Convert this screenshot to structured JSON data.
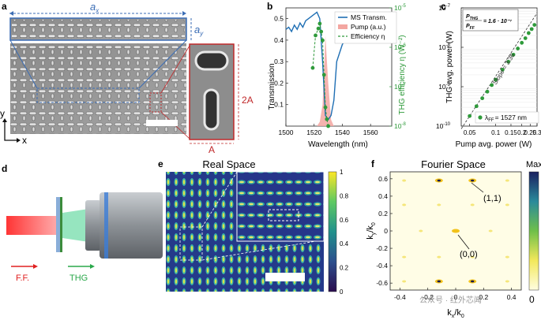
{
  "panels": {
    "a": {
      "letter": "a",
      "ax_label": "a",
      "ax_sub": "x",
      "ay_label": "a",
      "ay_sub": "y",
      "scale_label_2a": "2A",
      "scale_label_a": "A",
      "axis_y": "y",
      "axis_x": "x"
    },
    "b": {
      "letter": "b",
      "legend": [
        "MS Transm.",
        "Pump (a.u.)",
        "Efficiency η"
      ],
      "ylabel_left": "Transmission",
      "ylabel_right": "THG efficiency η (W⁻²)",
      "xlabel": "Wavelength (nm)",
      "xticks": [
        "1500",
        "1520",
        "1540",
        "1560"
      ],
      "yticks_left": [
        "0.1",
        "0.2",
        "0.3",
        "0.4",
        "0.5"
      ],
      "yticks_right": [
        "10",
        "10",
        "10",
        "10"
      ],
      "yticks_right_exp": [
        "-8",
        "-7",
        "-6",
        "-5"
      ]
    },
    "c": {
      "letter": "c",
      "formula_ratio": "P_THG / P_FF",
      "formula_num": "P",
      "formula_num_sub": "THG",
      "formula_den": "P",
      "formula_den_sub": "FF",
      "formula_value": "= 1.6 · 10⁻⁷",
      "slope_text": "Slope = 3.36",
      "legend_symbol": "λ",
      "legend_sub": "FF",
      "legend_value": "= 1527 nm",
      "ylabel": "THG avg. power (W)",
      "xlabel": "Pump avg. power (W)",
      "xticks": [
        "0.05",
        "0.1",
        "0.15",
        "0.2",
        "0.25",
        "0.3"
      ],
      "yticks": [
        "10",
        "10",
        "10",
        "10"
      ],
      "yticks_exp": [
        "-10",
        "-9",
        "-8",
        "-7"
      ]
    },
    "d": {
      "letter": "d",
      "ff_label": "F.F.",
      "thg_label": "THG"
    },
    "e": {
      "letter": "e",
      "title": "Real Space",
      "colorbar_ticks": [
        "1",
        "0.8",
        "0.6",
        "0.4",
        "0.2",
        "0"
      ]
    },
    "f": {
      "letter": "f",
      "title": "Fourier Space",
      "cbar_max": "Max",
      "cbar_min": "0",
      "ylabel": "k",
      "ylabel_sub": "y",
      "ylabel_over": "/k",
      "ylabel_over_sub": "0",
      "xlabel": "k",
      "xlabel_sub": "x",
      "xlabel_over": "/k",
      "xlabel_over_sub": "0",
      "yticks": [
        "0.6",
        "0.4",
        "0.2",
        "0",
        "-0.2",
        "-0.4",
        "-0.6"
      ],
      "xticks": [
        "-0.4",
        "-0.2",
        "0",
        "0.2",
        "0.4"
      ],
      "annotation_11": "(1,1)",
      "annotation_00": "(0,0)",
      "watermark": "公众号 · 红外芯闻"
    }
  },
  "chart_data": [
    {
      "type": "line",
      "panel": "b",
      "xlabel": "Wavelength (nm)",
      "ylabel": "Transmission",
      "xlim": [
        1500,
        1575
      ],
      "ylim": [
        0.0,
        0.55
      ],
      "series": [
        {
          "name": "MS Transm.",
          "color": "#1f6fb4",
          "x": [
            1500,
            1502,
            1504,
            1506,
            1508,
            1510,
            1512,
            1514,
            1516,
            1518,
            1520,
            1522,
            1524,
            1526,
            1528,
            1530,
            1532,
            1534,
            1536,
            1540,
            1544,
            1548,
            1552,
            1556,
            1560,
            1564,
            1568,
            1572,
            1575
          ],
          "y": [
            0.45,
            0.46,
            0.44,
            0.47,
            0.45,
            0.48,
            0.46,
            0.49,
            0.5,
            0.51,
            0.52,
            0.53,
            0.5,
            0.3,
            0.05,
            0.03,
            0.05,
            0.12,
            0.3,
            0.38,
            0.42,
            0.4,
            0.43,
            0.44,
            0.42,
            0.45,
            0.43,
            0.46,
            0.45
          ]
        },
        {
          "name": "Pump (a.u.)",
          "color": "#f3a6a1",
          "x": [
            1520,
            1522,
            1524,
            1526,
            1528,
            1530,
            1532,
            1534
          ],
          "y": [
            0.0,
            0.0,
            0.02,
            0.1,
            0.42,
            0.2,
            0.03,
            0.0
          ]
        }
      ]
    },
    {
      "type": "scatter",
      "panel": "b",
      "series": [
        {
          "name": "Efficiency η",
          "color": "#2e9a3a",
          "x": [
            1519,
            1521,
            1523,
            1524,
            1525,
            1526,
            1527,
            1528,
            1529,
            1530
          ],
          "y": [
            3e-07,
            2e-06,
            3e-06,
            4e-06,
            2.5e-06,
            1.5e-06,
            2e-07,
            3e-08,
            1.5e-08,
            1e-08
          ]
        }
      ],
      "ylabel": "THG efficiency η (W⁻²)",
      "ylim": [
        1e-08,
        1e-05
      ],
      "yscale": "log"
    },
    {
      "type": "scatter",
      "panel": "c",
      "xlabel": "Pump avg. power (W)",
      "ylabel": "THG avg. power (W)",
      "xscale": "log",
      "yscale": "log",
      "xlim": [
        0.04,
        0.3
      ],
      "ylim": [
        1e-10,
        1e-07
      ],
      "series": [
        {
          "name": "λFF = 1527 nm",
          "color": "#2e9a3a",
          "x": [
            0.05,
            0.06,
            0.07,
            0.08,
            0.09,
            0.1,
            0.12,
            0.14,
            0.16,
            0.18,
            0.2,
            0.22,
            0.24,
            0.26,
            0.28
          ],
          "y": [
            1.8e-10,
            3.2e-10,
            5.1e-10,
            7.5e-10,
            1.1e-09,
            1.5e-09,
            2.7e-09,
            4.3e-09,
            6.5e-09,
            9.3e-09,
            1.3e-08,
            1.7e-08,
            2.3e-08,
            2.9e-08,
            3.7e-08
          ]
        }
      ],
      "slope": 3.36
    }
  ]
}
